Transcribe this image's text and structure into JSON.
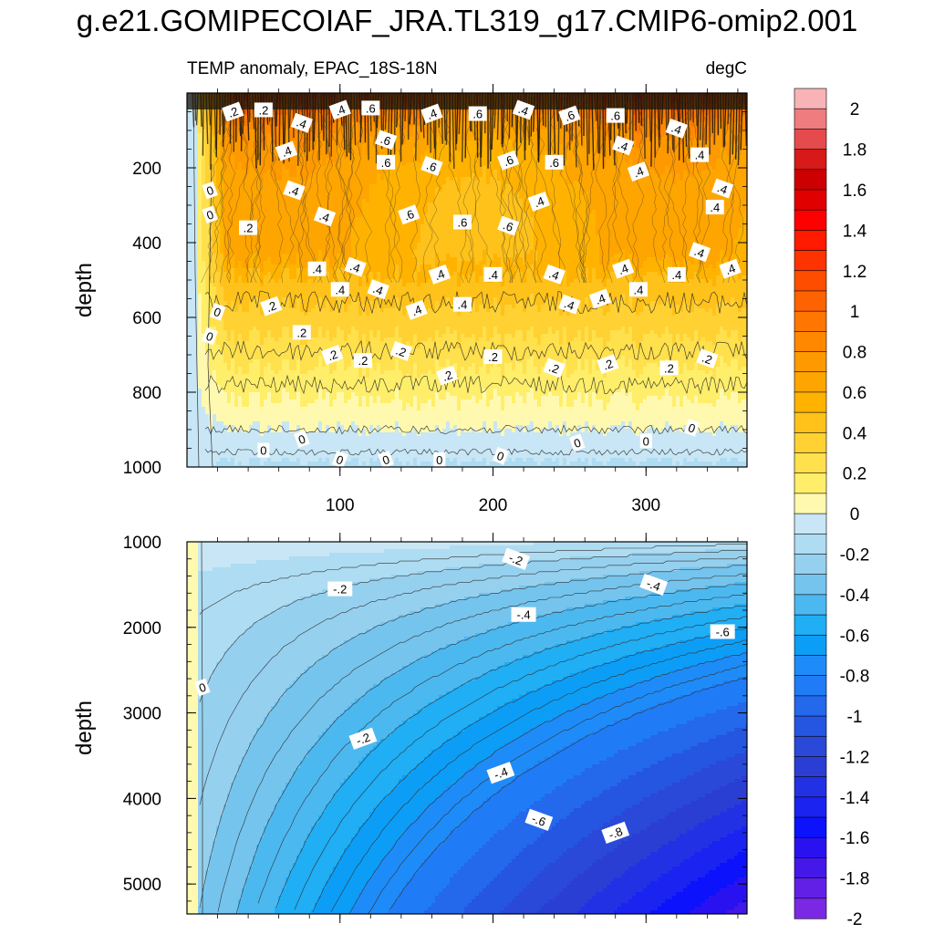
{
  "title": "g.e21.GOMIPECOIAF_JRA.TL319_g17.CMIP6-omip2.001",
  "chart_data": {
    "type": "heatmap",
    "subtitle_left": "TEMP anomaly, EPAC_18S-18N",
    "subtitle_right": "degC",
    "ylabel": "depth",
    "x_range": [
      0,
      366
    ],
    "x_tick_labels": [
      "100",
      "200",
      "300"
    ],
    "x_ticks": [
      100,
      200,
      300
    ],
    "panels": [
      {
        "name": "upper",
        "y_range": [
          0,
          1000
        ],
        "y_ticks": [
          200,
          400,
          600,
          800,
          1000
        ],
        "y_tick_labels": [
          "200",
          "400",
          "600",
          "800",
          "1000"
        ],
        "description_bands": [
          {
            "depth_top": 0,
            "depth_bottom": 120,
            "anomaly": 0.8
          },
          {
            "depth_top": 120,
            "depth_bottom": 480,
            "anomaly": 0.5
          },
          {
            "depth_top": 480,
            "depth_bottom": 650,
            "anomaly": 0.3
          },
          {
            "depth_top": 650,
            "depth_bottom": 900,
            "anomaly": 0.1
          },
          {
            "depth_top": 900,
            "depth_bottom": 1000,
            "anomaly": -0.1
          }
        ],
        "contour_labels": [
          {
            "x": 30,
            "y": 50,
            "text": ".2"
          },
          {
            "x": 50,
            "y": 45,
            "text": ".2"
          },
          {
            "x": 75,
            "y": 80,
            "text": ".4"
          },
          {
            "x": 100,
            "y": 45,
            "text": ".4"
          },
          {
            "x": 120,
            "y": 40,
            "text": ".6"
          },
          {
            "x": 130,
            "y": 125,
            "text": ".6"
          },
          {
            "x": 160,
            "y": 55,
            "text": ".4"
          },
          {
            "x": 190,
            "y": 55,
            "text": ".6"
          },
          {
            "x": 220,
            "y": 45,
            "text": ".4"
          },
          {
            "x": 250,
            "y": 60,
            "text": ".6"
          },
          {
            "x": 280,
            "y": 60,
            "text": ".6"
          },
          {
            "x": 320,
            "y": 95,
            "text": ".4"
          },
          {
            "x": 65,
            "y": 155,
            "text": ".4"
          },
          {
            "x": 130,
            "y": 185,
            "text": ".6"
          },
          {
            "x": 160,
            "y": 195,
            "text": ".6"
          },
          {
            "x": 210,
            "y": 180,
            "text": ".6"
          },
          {
            "x": 240,
            "y": 185,
            "text": ".6"
          },
          {
            "x": 285,
            "y": 140,
            "text": ".4"
          },
          {
            "x": 295,
            "y": 210,
            "text": ".4"
          },
          {
            "x": 335,
            "y": 165,
            "text": ".4"
          },
          {
            "x": 70,
            "y": 260,
            "text": ".4"
          },
          {
            "x": 15,
            "y": 260,
            "text": "0"
          },
          {
            "x": 40,
            "y": 360,
            "text": ".2"
          },
          {
            "x": 90,
            "y": 330,
            "text": ".4"
          },
          {
            "x": 145,
            "y": 325,
            "text": ".6"
          },
          {
            "x": 180,
            "y": 345,
            "text": ".6"
          },
          {
            "x": 210,
            "y": 355,
            "text": ".6"
          },
          {
            "x": 230,
            "y": 290,
            "text": ".4"
          },
          {
            "x": 345,
            "y": 305,
            "text": ".4"
          },
          {
            "x": 350,
            "y": 255,
            "text": ".4"
          },
          {
            "x": 15,
            "y": 325,
            "text": "0"
          },
          {
            "x": 85,
            "y": 470,
            "text": ".4"
          },
          {
            "x": 110,
            "y": 465,
            "text": ".4"
          },
          {
            "x": 165,
            "y": 485,
            "text": ".4"
          },
          {
            "x": 200,
            "y": 485,
            "text": ".4"
          },
          {
            "x": 240,
            "y": 485,
            "text": ".4"
          },
          {
            "x": 285,
            "y": 470,
            "text": ".4"
          },
          {
            "x": 320,
            "y": 485,
            "text": ".4"
          },
          {
            "x": 335,
            "y": 425,
            "text": ".4"
          },
          {
            "x": 355,
            "y": 470,
            "text": ".4"
          },
          {
            "x": 100,
            "y": 525,
            "text": ".4"
          },
          {
            "x": 125,
            "y": 525,
            "text": ".4"
          },
          {
            "x": 150,
            "y": 580,
            "text": ".4"
          },
          {
            "x": 180,
            "y": 565,
            "text": ".4"
          },
          {
            "x": 250,
            "y": 565,
            "text": ".4"
          },
          {
            "x": 270,
            "y": 550,
            "text": ".4"
          },
          {
            "x": 295,
            "y": 525,
            "text": ".4"
          },
          {
            "x": 20,
            "y": 585,
            "text": "0"
          },
          {
            "x": 55,
            "y": 570,
            "text": ".2"
          },
          {
            "x": 75,
            "y": 640,
            "text": ".2"
          },
          {
            "x": 15,
            "y": 650,
            "text": "0"
          },
          {
            "x": 95,
            "y": 700,
            "text": ".2"
          },
          {
            "x": 115,
            "y": 715,
            "text": ".2"
          },
          {
            "x": 140,
            "y": 690,
            "text": ".2"
          },
          {
            "x": 170,
            "y": 755,
            "text": ".2"
          },
          {
            "x": 200,
            "y": 705,
            "text": ".2"
          },
          {
            "x": 240,
            "y": 735,
            "text": ".2"
          },
          {
            "x": 275,
            "y": 725,
            "text": ".2"
          },
          {
            "x": 315,
            "y": 735,
            "text": ".2"
          },
          {
            "x": 340,
            "y": 710,
            "text": ".2"
          },
          {
            "x": 75,
            "y": 925,
            "text": "0"
          },
          {
            "x": 50,
            "y": 955,
            "text": "0"
          },
          {
            "x": 100,
            "y": 980,
            "text": "0"
          },
          {
            "x": 130,
            "y": 980,
            "text": "0"
          },
          {
            "x": 165,
            "y": 980,
            "text": "0"
          },
          {
            "x": 205,
            "y": 970,
            "text": "0"
          },
          {
            "x": 255,
            "y": 935,
            "text": "0"
          },
          {
            "x": 300,
            "y": 930,
            "text": "0"
          },
          {
            "x": 330,
            "y": 895,
            "text": "0"
          }
        ]
      },
      {
        "name": "lower",
        "y_range": [
          1000,
          5350
        ],
        "y_ticks": [
          1000,
          2000,
          3000,
          4000,
          5000
        ],
        "y_tick_labels": [
          "1000",
          "2000",
          "3000",
          "4000",
          "5000"
        ],
        "contour_labels": [
          {
            "x": 10,
            "y": 2700,
            "text": "0"
          },
          {
            "x": 100,
            "y": 1550,
            "text": "-.2"
          },
          {
            "x": 215,
            "y": 1200,
            "text": "-.2"
          },
          {
            "x": 115,
            "y": 3300,
            "text": "-.2"
          },
          {
            "x": 220,
            "y": 1850,
            "text": "-.4"
          },
          {
            "x": 305,
            "y": 1500,
            "text": "-.4"
          },
          {
            "x": 205,
            "y": 3700,
            "text": "-.4"
          },
          {
            "x": 350,
            "y": 2050,
            "text": "-.6"
          },
          {
            "x": 230,
            "y": 4250,
            "text": "-.6"
          },
          {
            "x": 280,
            "y": 4400,
            "text": "-.8"
          }
        ]
      }
    ],
    "colorbar": {
      "levels": [
        -2,
        -1.9,
        -1.8,
        -1.7,
        -1.6,
        -1.5,
        -1.4,
        -1.3,
        -1.2,
        -1.1,
        -1,
        -0.9,
        -0.8,
        -0.7,
        -0.6,
        -0.5,
        -0.4,
        -0.3,
        -0.2,
        -0.1,
        0,
        0.1,
        0.2,
        0.3,
        0.4,
        0.5,
        0.6,
        0.7,
        0.8,
        0.9,
        1,
        1.1,
        1.2,
        1.3,
        1.4,
        1.5,
        1.6,
        1.7,
        1.8,
        1.9,
        2,
        2.1
      ],
      "tick_labels": [
        "2",
        "1.8",
        "1.6",
        "1.4",
        "1.2",
        "1",
        "0.8",
        "0.6",
        "0.4",
        "0.2",
        "0",
        "-0.2",
        "-0.4",
        "-0.6",
        "-0.8",
        "-1",
        "-1.2",
        "-1.4",
        "-1.6",
        "-1.8",
        "-2"
      ],
      "tick_values": [
        2,
        1.8,
        1.6,
        1.4,
        1.2,
        1,
        0.8,
        0.6,
        0.4,
        0.2,
        0,
        -0.2,
        -0.4,
        -0.6,
        -0.8,
        -1,
        -1.2,
        -1.4,
        -1.6,
        -1.8,
        -2
      ],
      "colors_top_to_bottom": [
        "#f8b3b6",
        "#ef7c7e",
        "#e54b4d",
        "#d71919",
        "#cc0000",
        "#e00000",
        "#ff0000",
        "#ff1a00",
        "#ff3300",
        "#ff4d00",
        "#ff6200",
        "#ff7700",
        "#ff8800",
        "#ff9900",
        "#ffa500",
        "#ffb300",
        "#ffc21a",
        "#ffd133",
        "#ffe04d",
        "#ffee6a",
        "#fff9b0",
        "#c8e6f5",
        "#aedcf2",
        "#96d0ef",
        "#74c4ee",
        "#4cb8f0",
        "#20aef5",
        "#0c9ef6",
        "#1e8cf8",
        "#1f7cf6",
        "#2468ec",
        "#2456e2",
        "#2a49d8",
        "#2b3ed3",
        "#2331e4",
        "#1a23f0",
        "#0c12fb",
        "#2a12f0",
        "#4418e8",
        "#6220e6",
        "#7a28e4"
      ]
    }
  }
}
